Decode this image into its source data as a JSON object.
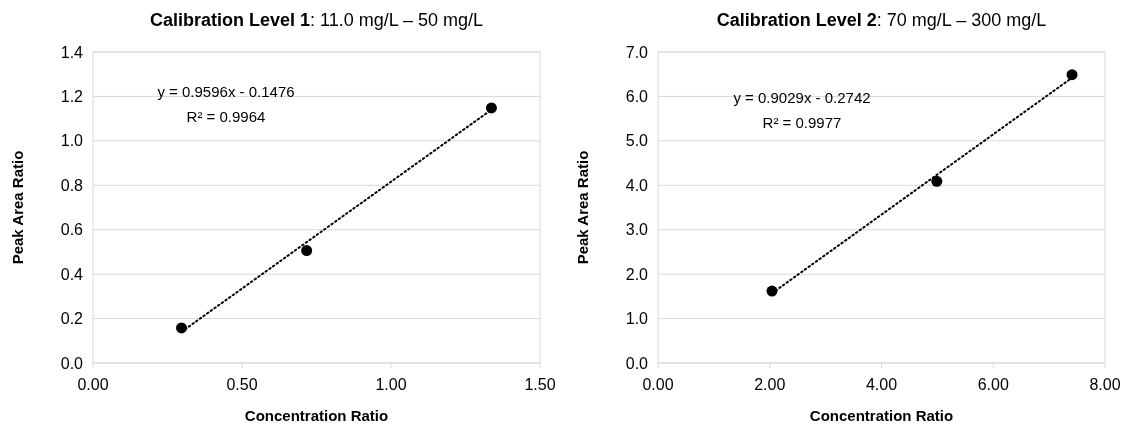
{
  "chart_data": [
    {
      "type": "scatter",
      "title": "Calibration Level 1: 11.0 mg/L – 50 mg/L",
      "xlabel": "Concentration Ratio",
      "ylabel": "Peak Area Ratio",
      "xlim": [
        0,
        1.5
      ],
      "xticks": [
        {
          "value": 0,
          "label": "0.00"
        },
        {
          "value": 0.5,
          "label": "0.50"
        },
        {
          "value": 1,
          "label": "1.00"
        },
        {
          "value": 1.5,
          "label": "1.50"
        }
      ],
      "ylim": [
        0,
        1.4
      ],
      "yticks": [
        {
          "value": 0,
          "label": "0.0"
        },
        0.2,
        0.4,
        0.6,
        0.8,
        {
          "value": 1,
          "label": "1.0"
        },
        1.2,
        1.4
      ],
      "grid": "y",
      "annotations": [
        "y = 0.9596x - 0.1476",
        "R² = 0.9964"
      ],
      "series": [
        {
          "color": "#000000",
          "marker": "circle",
          "x": [
            0.297,
            0.717,
            1.337
          ],
          "values": [
            0.158,
            0.506,
            1.148
          ]
        },
        {
          "type": "line",
          "color": "#000000",
          "line_style": "dotted",
          "x": [
            0.297,
            1.337
          ],
          "values": [
            0.14,
            1.14
          ]
        }
      ]
    },
    {
      "type": "scatter",
      "title": "Calibration Level 2: 70 mg/L – 300 mg/L",
      "xlabel": "Concentration Ratio",
      "ylabel": "Peak Area Ratio",
      "xlim": [
        0,
        8
      ],
      "xticks": [
        {
          "value": 0,
          "label": "0.00"
        },
        {
          "value": 2,
          "label": "2.00"
        },
        {
          "value": 4,
          "label": "4.00"
        },
        {
          "value": 6,
          "label": "6.00"
        },
        {
          "value": 8,
          "label": "8.00"
        }
      ],
      "ylim": [
        0,
        7
      ],
      "yticks": [
        {
          "value": 0,
          "label": "0.0"
        },
        {
          "value": 1,
          "label": "1.0"
        },
        {
          "value": 2,
          "label": "2.0"
        },
        {
          "value": 3,
          "label": "3.0"
        },
        {
          "value": 4,
          "label": "4.0"
        },
        {
          "value": 5,
          "label": "5.0"
        },
        {
          "value": 6,
          "label": "6.0"
        },
        {
          "value": 7,
          "label": "7.0"
        }
      ],
      "grid": "y",
      "annotations": [
        "y = 0.9029x - 0.2742",
        "R² = 0.9977"
      ],
      "series": [
        {
          "color": "#000000",
          "marker": "circle",
          "x": [
            2.04,
            4.99,
            7.41
          ],
          "values": [
            1.62,
            4.09,
            6.49
          ]
        },
        {
          "type": "line",
          "color": "#000000",
          "line_style": "dotted",
          "x": [
            2.04,
            7.41
          ],
          "values": [
            1.57,
            6.42
          ]
        }
      ]
    }
  ]
}
